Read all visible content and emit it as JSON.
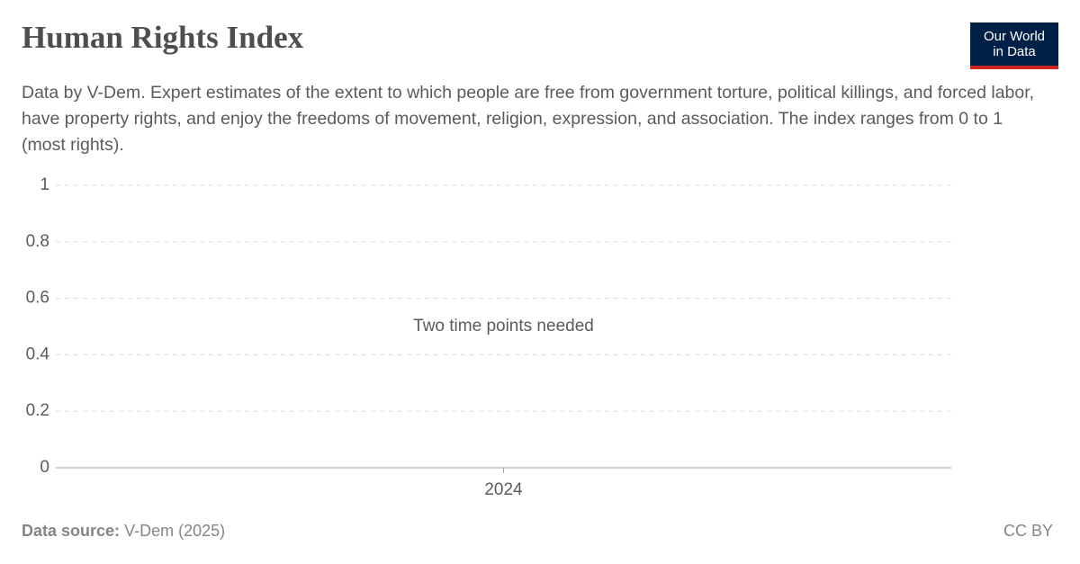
{
  "chart_data": {
    "type": "line",
    "title": "Human Rights Index",
    "subtitle": "Data by V-Dem. Expert estimates of the extent to which people are free from government torture, political killings, and forced labor, have property rights, and enjoy the freedoms of movement, religion, expression, and association. The index ranges from 0 to 1 (most rights).",
    "categories": [
      "2024"
    ],
    "series": [],
    "ylim": [
      0,
      1
    ],
    "yticks": [
      0,
      0.2,
      0.4,
      0.6,
      0.8,
      1
    ],
    "grid": true,
    "annotation": "Two time points needed",
    "source_label": "Data source:",
    "source": "V-Dem (2025)",
    "license": "CC BY",
    "logo": [
      "Our World",
      "in Data"
    ]
  }
}
